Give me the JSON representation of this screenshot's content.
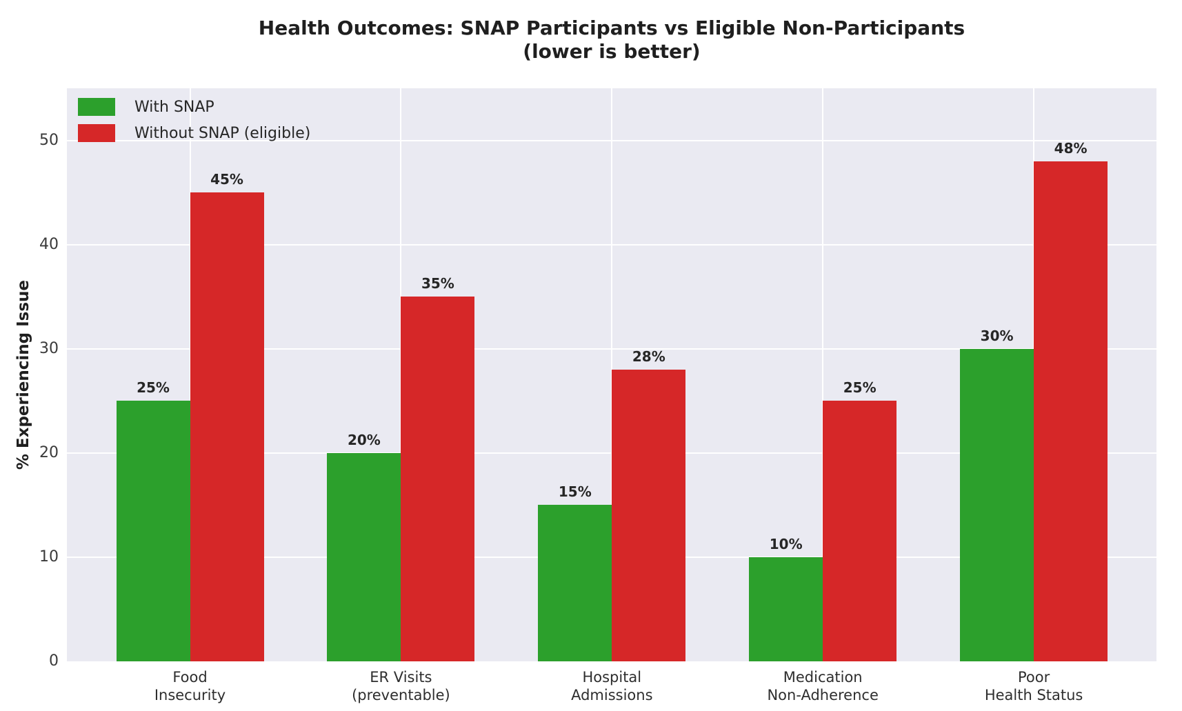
{
  "title": {
    "line1": "Health Outcomes: SNAP Participants vs Eligible Non-Participants",
    "line2": "(lower is better)"
  },
  "ylabel": "% Experiencing Issue",
  "legend": [
    {
      "label": "With SNAP",
      "color": "#2ca02c"
    },
    {
      "label": "Without SNAP (eligible)",
      "color": "#d62728"
    }
  ],
  "chart_data": {
    "type": "bar",
    "title": "Health Outcomes: SNAP Participants vs Eligible Non-Participants (lower is better)",
    "xlabel": "",
    "ylabel": "% Experiencing Issue",
    "categories": [
      "Food\nInsecurity",
      "ER Visits\n(preventable)",
      "Hospital\nAdmissions",
      "Medication\nNon-Adherence",
      "Poor\nHealth Status"
    ],
    "series": [
      {
        "name": "With SNAP",
        "color": "#2ca02c",
        "values": [
          25,
          20,
          15,
          10,
          30
        ],
        "labels": [
          "25%",
          "20%",
          "15%",
          "10%",
          "30%"
        ]
      },
      {
        "name": "Without SNAP (eligible)",
        "color": "#d62728",
        "values": [
          45,
          35,
          28,
          25,
          48
        ],
        "labels": [
          "45%",
          "35%",
          "28%",
          "25%",
          "48%"
        ]
      }
    ],
    "yticks": [
      0,
      10,
      20,
      30,
      40,
      50
    ],
    "ylim": [
      0,
      55
    ],
    "grid": true,
    "legend_position": "upper left",
    "plot_background": "#eaeaf2",
    "grid_color": "#ffffff",
    "figure_background": "#ffffff"
  }
}
